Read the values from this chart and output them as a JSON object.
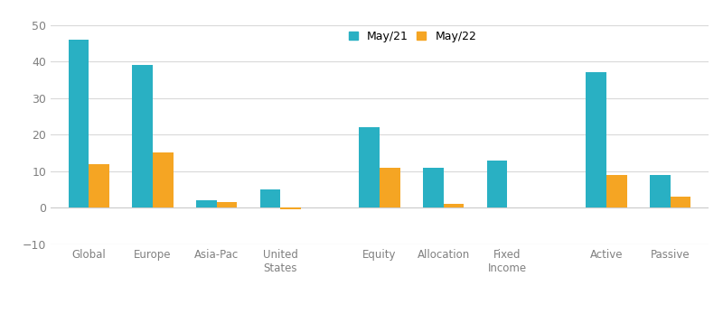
{
  "categories": [
    "Global",
    "Europe",
    "Asia-Pac",
    "United\nStates",
    "Equity",
    "Allocation",
    "Fixed\nIncome",
    "Active",
    "Passive"
  ],
  "may21": [
    46,
    39,
    2,
    5,
    22,
    11,
    13,
    37,
    9
  ],
  "may22": [
    12,
    15,
    1.5,
    -0.5,
    11,
    1,
    0,
    9,
    3
  ],
  "color_may21": "#29b0c3",
  "color_may22": "#f5a523",
  "ylim": [
    -10,
    50
  ],
  "yticks": [
    -10,
    0,
    10,
    20,
    30,
    40,
    50
  ],
  "legend_may21": "May/21",
  "legend_may22": "May/22",
  "bar_width": 0.32,
  "background_color": "#ffffff",
  "grid_color": "#d9d9d9"
}
